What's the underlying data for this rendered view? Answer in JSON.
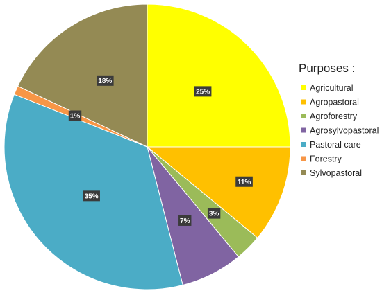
{
  "chart_data": {
    "type": "pie",
    "legend_title": "Purposes :",
    "legend_position": "right",
    "categories": [
      "Agricultural",
      "Agropastoral",
      "Agroforestry",
      "Agrosylvopastoral",
      "Pastoral care",
      "Forestry",
      "Sylvopastoral"
    ],
    "values": [
      25,
      11,
      3,
      7,
      35,
      1,
      18
    ],
    "data_labels": [
      "25%",
      "11%",
      "3%",
      "7%",
      "35%",
      "1%",
      "18%"
    ],
    "colors": [
      "#FFFF00",
      "#FFC000",
      "#9BBB59",
      "#8064A2",
      "#4BACC6",
      "#F79646",
      "#948A54"
    ]
  }
}
